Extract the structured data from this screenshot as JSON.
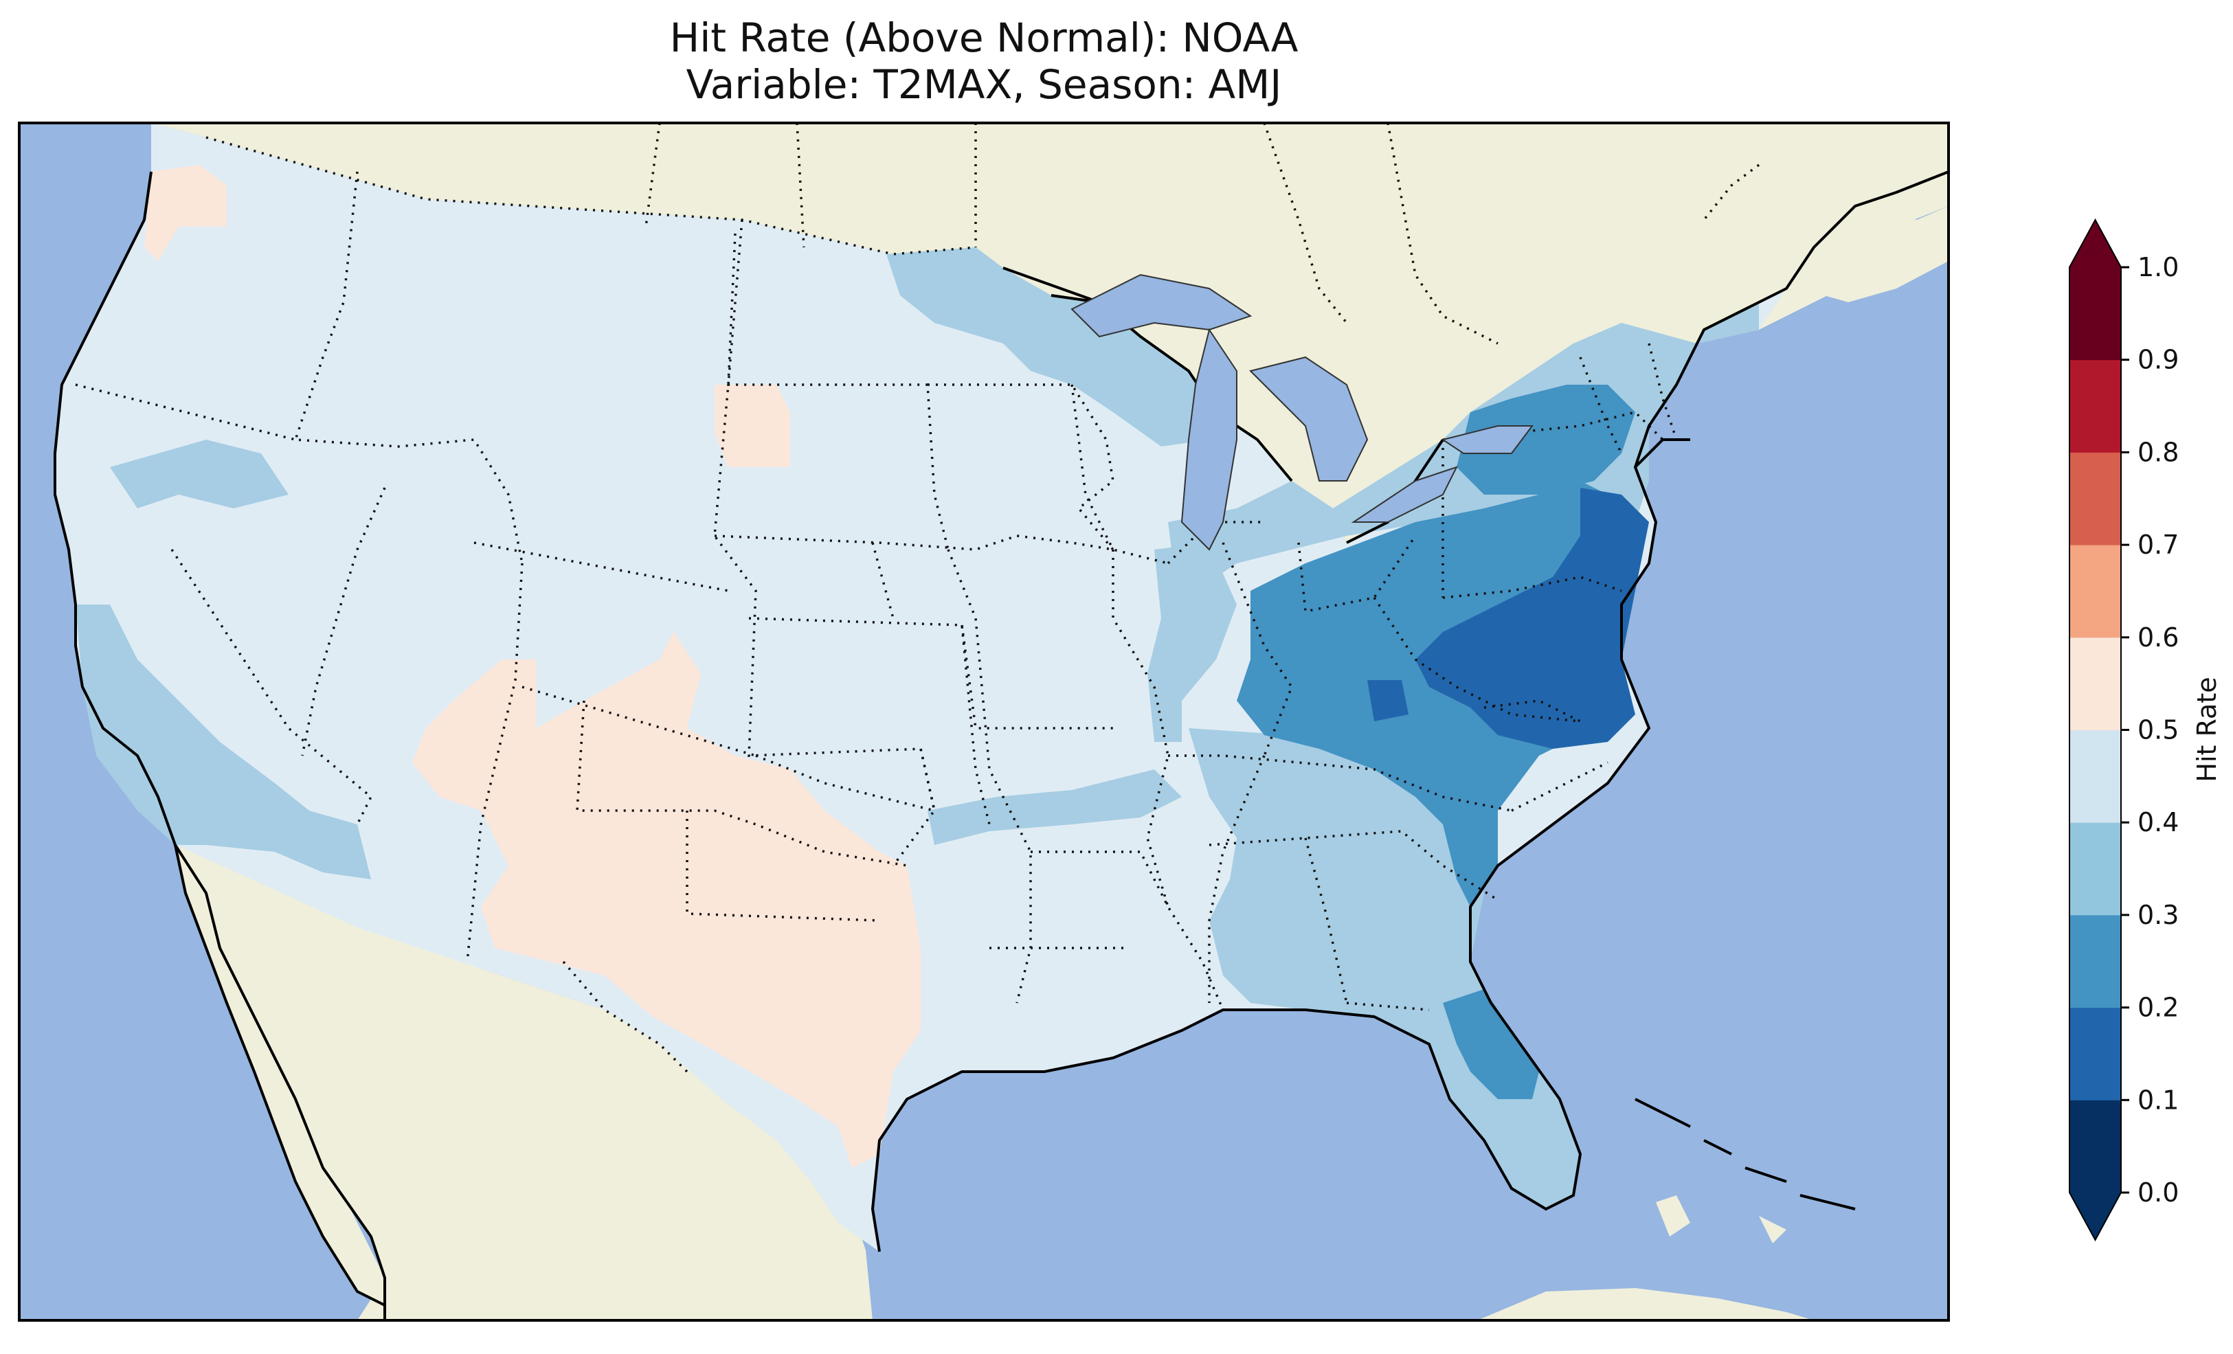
{
  "title": {
    "line1": "Hit Rate (Above Normal): NOAA",
    "line2": "Variable: T2MAX, Season: AMJ"
  },
  "map": {
    "projection": "Lambert conformal (contiguous US)",
    "ocean_color": "#97b6e1",
    "land_color": "#efefdb",
    "region_values": [
      {
        "region": "Pacific Northwest coast (western WA)",
        "class": "0.5-0.6"
      },
      {
        "region": "Interior West / Northern Plains",
        "class": "0.4-0.5"
      },
      {
        "region": "Western South Dakota",
        "class": "0.5-0.6"
      },
      {
        "region": "Utah / Colorado / New Mexico / Texas",
        "class": "0.5-0.6"
      },
      {
        "region": "Central California / Southern Nevada",
        "class": "0.3-0.4"
      },
      {
        "region": "Minnesota / Upper Midwest",
        "class": "0.3-0.4"
      },
      {
        "region": "Michigan / Ohio Valley",
        "class": "0.2-0.3"
      },
      {
        "region": "Pennsylvania / New York / New England",
        "class": "0.2-0.3"
      },
      {
        "region": "New Jersey / Maryland / Virginia",
        "class": "0.1-0.2"
      },
      {
        "region": "Southeast (GA / AL / SC)",
        "class": "0.3-0.4"
      },
      {
        "region": "Florida peninsula",
        "class": "0.2-0.4"
      }
    ]
  },
  "colorbar": {
    "label": "Hit Rate",
    "ticks": [
      "0.0",
      "0.1",
      "0.2",
      "0.3",
      "0.4",
      "0.5",
      "0.6",
      "0.7",
      "0.8",
      "0.9",
      "1.0"
    ],
    "colors": [
      "#053061",
      "#2166ac",
      "#4393c3",
      "#92c5de",
      "#d1e5f0",
      "#fbe6da",
      "#f4a582",
      "#d6604d",
      "#b2182b",
      "#67001f"
    ],
    "under_color": "#053061",
    "over_color": "#67001f",
    "extend": "both"
  }
}
